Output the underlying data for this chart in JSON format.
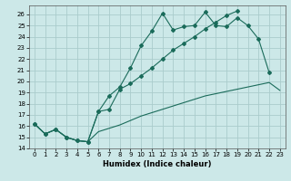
{
  "xlabel": "Humidex (Indice chaleur)",
  "bg_color": "#cce8e8",
  "grid_color": "#aacccc",
  "line_color": "#1a6b5a",
  "xlim": [
    -0.5,
    23.5
  ],
  "ylim": [
    14.0,
    26.8
  ],
  "yticks": [
    14,
    15,
    16,
    17,
    18,
    19,
    20,
    21,
    22,
    23,
    24,
    25,
    26
  ],
  "xticks": [
    0,
    1,
    2,
    3,
    4,
    5,
    6,
    7,
    8,
    9,
    10,
    11,
    12,
    13,
    14,
    15,
    16,
    17,
    18,
    19,
    20,
    21,
    22,
    23
  ],
  "line1_y": [
    16.2,
    15.3,
    15.7,
    15.0,
    14.7,
    14.6,
    17.3,
    18.7,
    19.5,
    21.2,
    23.2,
    24.5,
    26.1,
    24.6,
    24.9,
    25.0,
    26.2,
    25.0,
    24.9,
    25.7,
    25.0,
    23.8,
    20.8,
    null
  ],
  "line2_y": [
    null,
    null,
    null,
    null,
    null,
    null,
    null,
    null,
    null,
    null,
    null,
    null,
    null,
    null,
    null,
    null,
    26.2,
    25.0,
    24.9,
    25.7,
    25.0,
    23.8,
    20.8,
    null
  ],
  "line2b_y": [
    16.2,
    15.3,
    15.7,
    15.0,
    14.7,
    14.6,
    17.3,
    17.5,
    19.3,
    19.8,
    20.5,
    21.2,
    22.0,
    22.8,
    23.4,
    24.0,
    24.7,
    25.3,
    25.9,
    26.3,
    null,
    null,
    null,
    null
  ],
  "line3_y": [
    16.2,
    15.3,
    15.7,
    15.0,
    14.7,
    14.6,
    15.5,
    15.8,
    16.1,
    16.5,
    16.9,
    17.2,
    17.5,
    17.8,
    18.1,
    18.4,
    18.7,
    18.9,
    19.1,
    19.3,
    19.5,
    19.7,
    19.9,
    19.2
  ]
}
